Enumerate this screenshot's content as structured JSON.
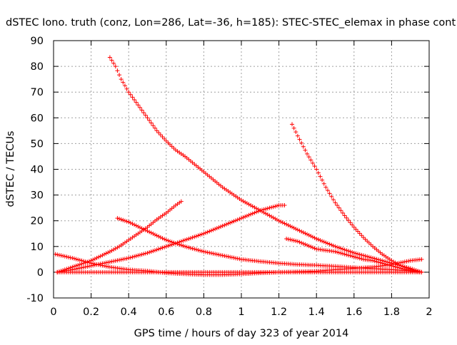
{
  "chart_data": {
    "type": "scatter",
    "title": "dSTEC Iono. truth (conz, Lon=286, Lat=-36, h=185): STEC-STEC_elemax in phase cont",
    "xlabel": "GPS time / hours of day 323 of year 2014",
    "ylabel": "dSTEC  / TECUs",
    "xlim": [
      0,
      2
    ],
    "ylim": [
      -10,
      90
    ],
    "x_ticks": [
      0,
      0.2,
      0.4,
      0.6,
      0.8,
      1,
      1.2,
      1.4,
      1.6,
      1.8,
      2
    ],
    "x_tick_labels": [
      "0",
      "0.2",
      "0.4",
      "0.6",
      "0.8",
      "1",
      "1.2",
      "1.4",
      "1.6",
      "1.8",
      "2"
    ],
    "y_ticks": [
      -10,
      0,
      10,
      20,
      30,
      40,
      50,
      60,
      70,
      80,
      90
    ],
    "y_tick_labels": [
      "-10",
      "0",
      "10",
      "20",
      "30",
      "40",
      "50",
      "60",
      "70",
      "80",
      "90"
    ],
    "grid": true,
    "marker": "+",
    "color": "#ff0000",
    "series": [
      {
        "x": [
          0.3,
          0.33,
          0.36,
          0.4,
          0.45,
          0.5,
          0.55,
          0.6,
          0.65,
          0.7,
          0.8,
          0.9,
          1.0,
          1.1,
          1.2,
          1.3,
          1.4,
          1.5,
          1.6,
          1.7,
          1.8,
          1.9,
          1.96
        ],
        "y": [
          83.5,
          80,
          75,
          70,
          65,
          60,
          55,
          51,
          47.5,
          45,
          39,
          33,
          28,
          24,
          20,
          16.5,
          13,
          10,
          7.5,
          5.5,
          3.5,
          1.5,
          0
        ]
      },
      {
        "x": [
          1.27,
          1.3,
          1.35,
          1.4,
          1.45,
          1.5,
          1.55,
          1.6,
          1.65,
          1.7,
          1.75,
          1.8,
          1.85,
          1.9,
          1.96
        ],
        "y": [
          57.5,
          53,
          46,
          40,
          33,
          27,
          22,
          17.5,
          13.5,
          10,
          7,
          4.5,
          2.5,
          1,
          0
        ]
      },
      {
        "x": [
          0.02,
          0.1,
          0.2,
          0.3,
          0.35,
          0.4,
          0.45,
          0.5,
          0.55,
          0.6,
          0.65,
          0.68
        ],
        "y": [
          0,
          2,
          4.5,
          8,
          10,
          12.5,
          15,
          17.5,
          20.5,
          23,
          26,
          27.5
        ]
      },
      {
        "x": [
          0.02,
          0.1,
          0.2,
          0.3,
          0.4,
          0.5,
          0.6,
          0.7,
          0.8,
          0.9,
          1.0,
          1.1,
          1.2,
          1.23
        ],
        "y": [
          0,
          1,
          2.5,
          4,
          5.5,
          7.5,
          10,
          12.5,
          15,
          18,
          21,
          24,
          26,
          26
        ]
      },
      {
        "x": [
          0.34,
          0.4,
          0.5,
          0.6,
          0.7,
          0.8,
          0.9,
          1.0,
          1.1,
          1.2,
          1.3,
          1.4,
          1.5,
          1.6,
          1.7,
          1.8,
          1.9,
          1.96
        ],
        "y": [
          21,
          19.5,
          16,
          12.5,
          10,
          8,
          6.5,
          5,
          4.2,
          3.5,
          3,
          2.7,
          2.3,
          1.8,
          1.4,
          1,
          0.5,
          0
        ]
      },
      {
        "x": [
          0.01,
          0.1,
          0.2,
          0.3,
          0.4,
          0.5,
          0.6,
          0.7,
          0.8,
          0.9,
          1.0,
          1.1,
          1.2,
          1.3,
          1.4,
          1.5,
          1.6,
          1.7,
          1.8,
          1.9,
          1.96
        ],
        "y": [
          7,
          5.5,
          3.5,
          2,
          1,
          0.5,
          -0.3,
          -0.7,
          -1,
          -1,
          -0.7,
          -0.3,
          0,
          0.2,
          0.4,
          1,
          1.5,
          2,
          3,
          4.5,
          5
        ]
      },
      {
        "x": [
          1.24,
          1.3,
          1.35,
          1.4,
          1.45,
          1.5,
          1.55,
          1.6,
          1.65,
          1.7,
          1.75,
          1.8,
          1.85,
          1.9,
          1.96
        ],
        "y": [
          13,
          12,
          10.5,
          9,
          8.5,
          8,
          7,
          6,
          5,
          4.5,
          3.5,
          2.5,
          1.5,
          0.5,
          0
        ]
      },
      {
        "x": [
          0.02,
          0.1,
          0.2,
          0.3,
          0.4,
          0.5,
          0.6,
          0.7,
          0.8,
          0.9,
          1.0,
          1.1,
          1.2,
          1.3,
          1.4,
          1.5,
          1.6,
          1.7,
          1.8,
          1.9,
          1.96
        ],
        "y": [
          0,
          0,
          0,
          0,
          0,
          0,
          0,
          0,
          0,
          0,
          0,
          0,
          0,
          0,
          0,
          0,
          0,
          0,
          0,
          0,
          0
        ]
      }
    ]
  }
}
